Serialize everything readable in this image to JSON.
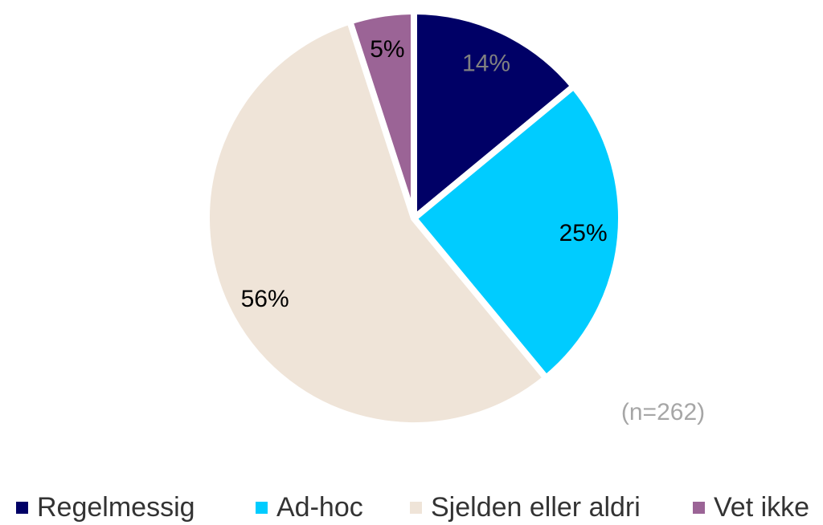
{
  "chart_data": {
    "type": "pie",
    "categories": [
      "Regelmessig",
      "Ad-hoc",
      "Sjelden eller aldri",
      "Vet ikke"
    ],
    "values": [
      14,
      25,
      56,
      5
    ],
    "value_labels": [
      "14%",
      "25%",
      "56%",
      "5%"
    ],
    "colors": [
      "#000066",
      "#00ccff",
      "#efe4d8",
      "#9b6496"
    ],
    "value_label_colors": [
      "#808080",
      "#000000",
      "#000000",
      "#000000"
    ],
    "annotation": "(n=262)",
    "legend": "bottom"
  }
}
